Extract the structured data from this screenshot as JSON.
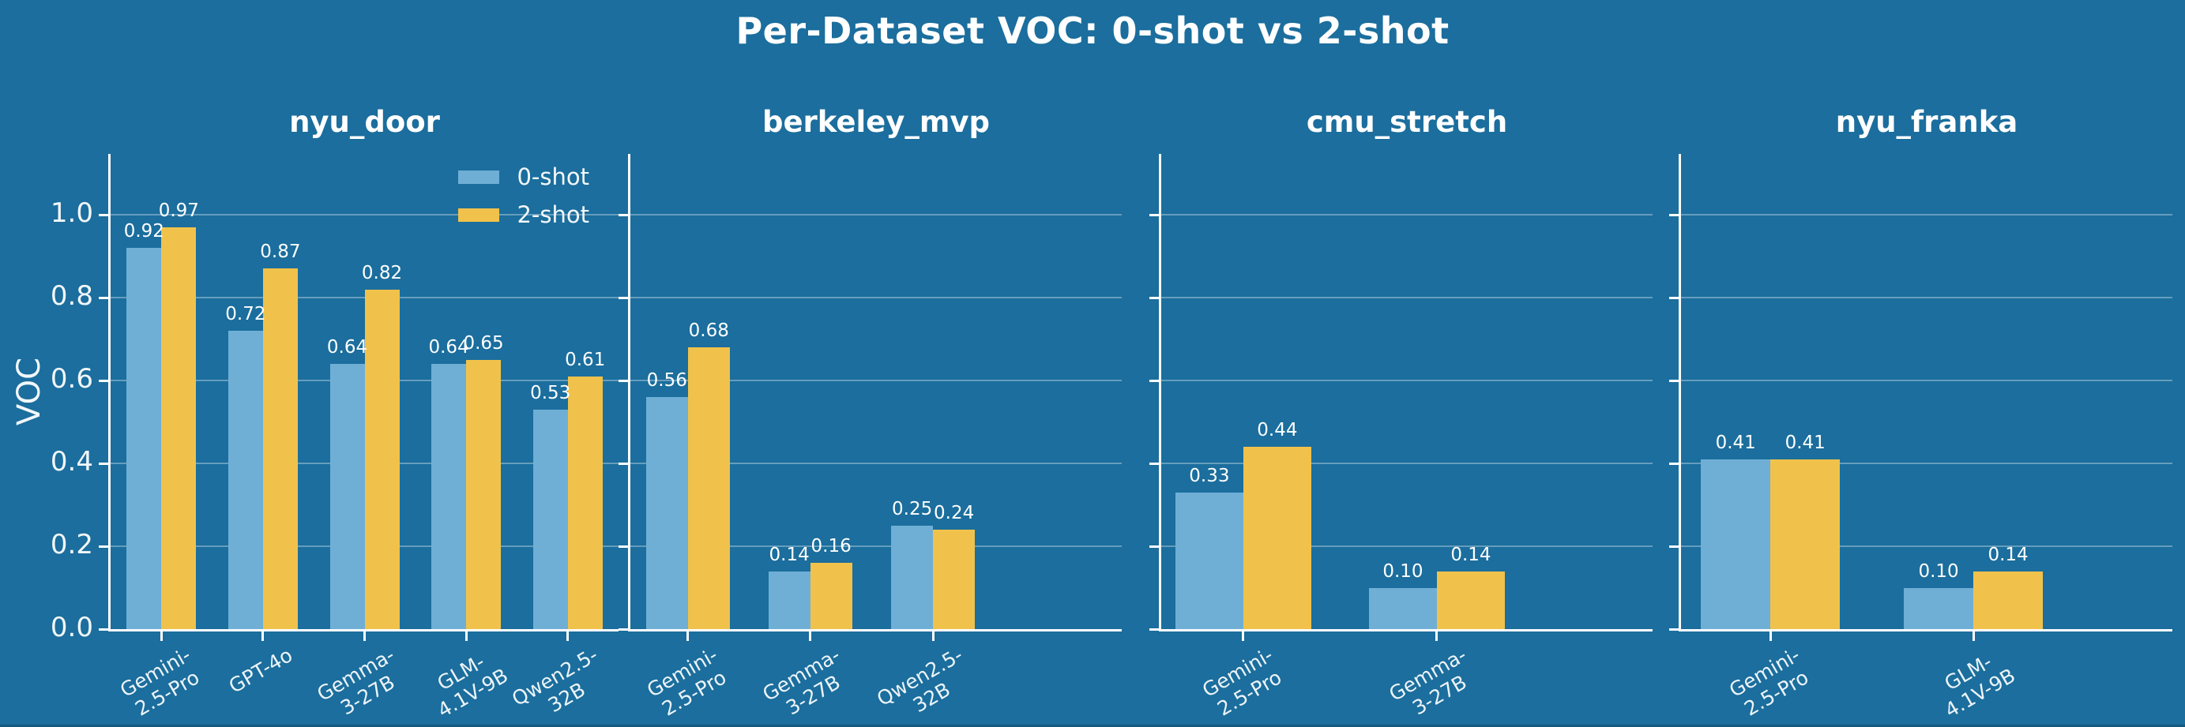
{
  "title": "Per-Dataset VOC: 0-shot vs 2-shot",
  "ylabel": "VOC",
  "y_tick_labels": [
    "0.0",
    "0.2",
    "0.4",
    "0.6",
    "0.8",
    "1.0"
  ],
  "legend": [
    {
      "label": "0-shot",
      "color": "#6FAFD6"
    },
    {
      "label": "2-shot",
      "color": "#F0C24B"
    }
  ],
  "colors": {
    "background": "#1B6E9D",
    "zero_shot_bar": "#6FAFD6",
    "two_shot_bar": "#F0C24B",
    "text": "#FFFFFF",
    "grid": "rgba(255,255,255,0.33)"
  },
  "chart_data": [
    {
      "type": "bar",
      "title": "nyu_door",
      "categories": [
        "Gemini-2.5-Pro",
        "GPT-4o",
        "Gemma-3-27B",
        "GLM-4.1V-9B",
        "Qwen2.5-32B"
      ],
      "category_display": [
        [
          "Gemini-",
          "2.5-Pro"
        ],
        [
          "GPT-4o"
        ],
        [
          "Gemma-",
          "3-27B"
        ],
        [
          "GLM-",
          "4.1V-9B"
        ],
        [
          "Qwen2.5-",
          "32B"
        ]
      ],
      "series": [
        {
          "name": "0-shot",
          "values": [
            0.92,
            0.72,
            0.64,
            0.64,
            0.53
          ]
        },
        {
          "name": "2-shot",
          "values": [
            0.97,
            0.87,
            0.82,
            0.65,
            0.61
          ]
        }
      ],
      "ylabel": "VOC",
      "ylim": [
        0,
        1.15
      ],
      "grid": true,
      "legend_position": "upper right"
    },
    {
      "type": "bar",
      "title": "berkeley_mvp",
      "categories": [
        "Gemini-2.5-Pro",
        "Gemma-3-27B",
        "Qwen2.5-32B"
      ],
      "category_display": [
        [
          "Gemini-",
          "2.5-Pro"
        ],
        [
          "Gemma-",
          "3-27B"
        ],
        [
          "Qwen2.5-",
          "32B"
        ]
      ],
      "series": [
        {
          "name": "0-shot",
          "values": [
            0.56,
            0.14,
            0.25
          ]
        },
        {
          "name": "2-shot",
          "values": [
            0.68,
            0.16,
            0.24
          ]
        }
      ],
      "ylim": [
        0,
        1.15
      ],
      "grid": true,
      "legend_position": "none"
    },
    {
      "type": "bar",
      "title": "cmu_stretch",
      "categories": [
        "Gemini-2.5-Pro",
        "Gemma-3-27B"
      ],
      "category_display": [
        [
          "Gemini-",
          "2.5-Pro"
        ],
        [
          "Gemma-",
          "3-27B"
        ]
      ],
      "series": [
        {
          "name": "0-shot",
          "values": [
            0.33,
            0.1
          ]
        },
        {
          "name": "2-shot",
          "values": [
            0.44,
            0.14
          ]
        }
      ],
      "ylim": [
        0,
        1.15
      ],
      "grid": true,
      "legend_position": "none"
    },
    {
      "type": "bar",
      "title": "nyu_franka",
      "categories": [
        "Gemini-2.5-Pro",
        "GLM-4.1V-9B"
      ],
      "category_display": [
        [
          "Gemini-",
          "2.5-Pro"
        ],
        [
          "GLM-",
          "4.1V-9B"
        ]
      ],
      "series": [
        {
          "name": "0-shot",
          "values": [
            0.41,
            0.1
          ]
        },
        {
          "name": "2-shot",
          "values": [
            0.41,
            0.14
          ]
        }
      ],
      "ylim": [
        0,
        1.15
      ],
      "grid": true,
      "legend_position": "none"
    }
  ]
}
